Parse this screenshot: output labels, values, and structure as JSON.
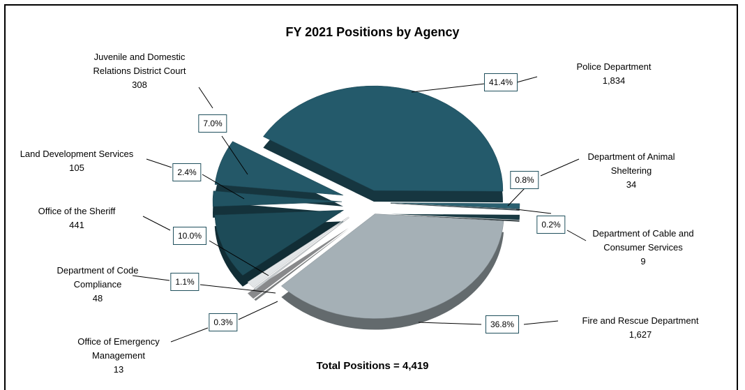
{
  "chart_data": {
    "type": "pie",
    "title": "FY 2021 Positions by Agency",
    "categories": [
      "Police Department",
      "Department of Animal Sheltering",
      "Department of Cable and Consumer Services",
      "Fire and Rescue Department",
      "Office of Emergency Management",
      "Department of Code Compliance",
      "Office of the Sheriff",
      "Land Development Services",
      "Juvenile and Domestic Relations District Court"
    ],
    "values": [
      1834,
      34,
      9,
      1627,
      13,
      48,
      441,
      105,
      308
    ],
    "value_labels": [
      "1,834",
      "34",
      "9",
      "1,627",
      "13",
      "48",
      "441",
      "105",
      "308"
    ],
    "percents": [
      41.4,
      0.8,
      0.2,
      36.8,
      0.3,
      1.1,
      10.0,
      2.4,
      7.0
    ],
    "percent_labels": [
      "41.4%",
      "0.8%",
      "0.2%",
      "36.8%",
      "0.3%",
      "1.1%",
      "10.0%",
      "2.4%",
      "7.0%"
    ],
    "colors": [
      "#245a6b",
      "#2a6070",
      "#4a5c63",
      "#a5b0b6",
      "#c9ced1",
      "#e2e5e7",
      "#1d4b58",
      "#215362",
      "#245868"
    ],
    "annotation": "Total Positions = 4,419"
  }
}
